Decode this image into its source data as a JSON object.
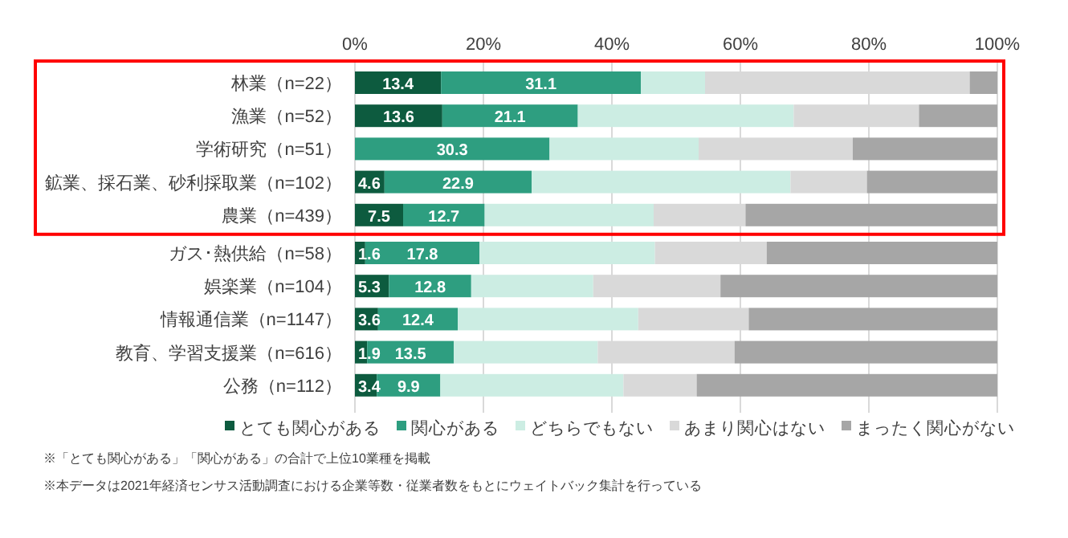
{
  "chart_data": {
    "type": "bar",
    "orientation": "horizontal",
    "stacked": true,
    "categories": [
      "林業（n=22）",
      "漁業（n=52）",
      "学術研究（n=51）",
      "鉱業、採石業、砂利採取業（n=102）",
      "農業（n=439）",
      "ガス･熱供給（n=58）",
      "娯楽業（n=104）",
      "情報通信業（n=1147）",
      "教育、学習支援業（n=616）",
      "公務（n=112）"
    ],
    "series": [
      {
        "name": "とても関心がある",
        "color": "#0d5b3f",
        "values": [
          13.4,
          13.6,
          0,
          4.6,
          7.5,
          1.6,
          5.3,
          3.6,
          1.9,
          3.4
        ],
        "value_labels": [
          "13.4",
          "13.6",
          null,
          "4.6",
          "7.5",
          "1.6",
          "5.3",
          "3.6",
          "1.9",
          "3.4"
        ]
      },
      {
        "name": "関心がある",
        "color": "#2e9e80",
        "values": [
          31.1,
          21.1,
          30.3,
          22.9,
          12.7,
          17.8,
          12.8,
          12.4,
          13.5,
          9.9
        ],
        "value_labels": [
          "31.1",
          "21.1",
          "30.3",
          "22.9",
          "12.7",
          "17.8",
          "12.8",
          "12.4",
          "13.5",
          "9.9"
        ]
      },
      {
        "name": "どちらでもない",
        "color": "#ccede3",
        "values": [
          10.0,
          33.6,
          23.2,
          40.3,
          26.3,
          27.3,
          19.0,
          28.1,
          22.4,
          28.5
        ]
      },
      {
        "name": "あまり関心はない",
        "color": "#d9d9d9",
        "values": [
          41.2,
          19.5,
          24.0,
          11.9,
          14.3,
          17.4,
          19.8,
          17.2,
          21.3,
          11.4
        ]
      },
      {
        "name": "まったく関心がない",
        "color": "#a6a6a6",
        "values": [
          4.3,
          12.2,
          22.5,
          20.3,
          39.2,
          35.9,
          43.1,
          38.7,
          40.9,
          46.8
        ]
      }
    ],
    "xlim": [
      0,
      100
    ],
    "xticks": [
      {
        "value": 0,
        "label": "0%"
      },
      {
        "value": 20,
        "label": "20%"
      },
      {
        "value": 40,
        "label": "40%"
      },
      {
        "value": 60,
        "label": "60%"
      },
      {
        "value": 80,
        "label": "80%"
      },
      {
        "value": 100,
        "label": "100%"
      }
    ],
    "grid": "x",
    "legend": "bottom",
    "annotations": [
      "※「とても関心がある」「関心がある」の合計で上位10業種を掲載",
      "※本データは2021年経済センサス活動調査における企業等数・従業者数をもとにウェイトバック集計を行っている"
    ]
  }
}
